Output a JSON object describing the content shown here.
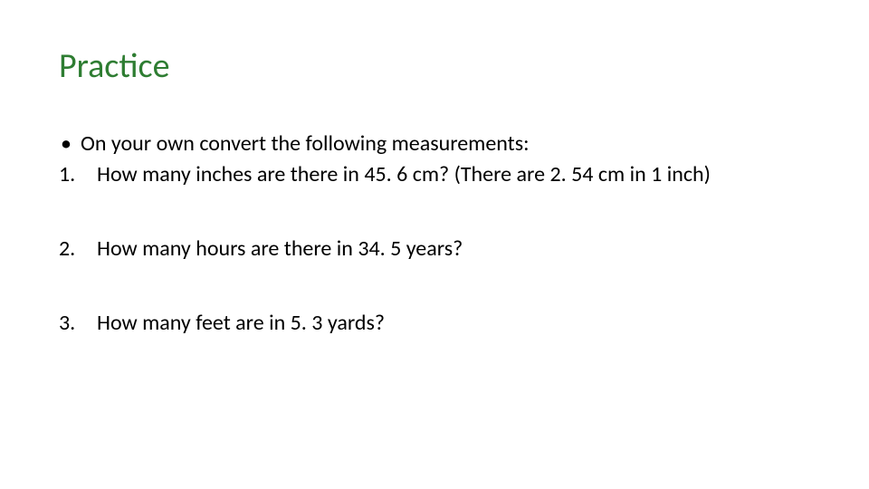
{
  "slide": {
    "title": "Practice",
    "title_color": "#2e7d32",
    "body_color": "#000000",
    "background_color": "#ffffff",
    "title_fontsize": 38,
    "body_fontsize": 24,
    "intro_bullet": "•",
    "intro_text": "On your own convert the following measurements:",
    "items": [
      {
        "num": "1.",
        "text": "How many inches are there in 45. 6 cm?  (There are 2. 54 cm in 1 inch)"
      },
      {
        "num": "2.",
        "text": "How many hours are there in 34. 5 years?"
      },
      {
        "num": "3.",
        "text": "How many feet are in 5. 3 yards?"
      }
    ]
  }
}
